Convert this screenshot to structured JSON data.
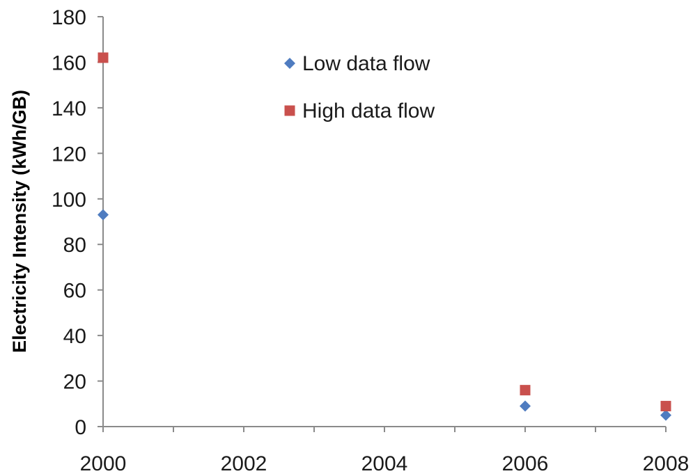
{
  "chart_data": {
    "type": "scatter",
    "title": "",
    "xlabel": "",
    "ylabel": "Electricity Intensity (kWh/GB)",
    "xlim": [
      2000,
      2008
    ],
    "ylim": [
      0,
      180
    ],
    "x_ticks": [
      2000,
      2002,
      2004,
      2006,
      2008
    ],
    "y_ticks": [
      0,
      20,
      40,
      60,
      80,
      100,
      120,
      140,
      160,
      180
    ],
    "grid": false,
    "legend_position": "top-center",
    "series": [
      {
        "name": "Low data flow",
        "marker": "diamond",
        "color": "#4F7CC0",
        "points": [
          {
            "x": 2000,
            "y": 93
          },
          {
            "x": 2006,
            "y": 9
          },
          {
            "x": 2008,
            "y": 5
          }
        ]
      },
      {
        "name": "High data flow",
        "marker": "square",
        "color": "#C9504D",
        "points": [
          {
            "x": 2000,
            "y": 162
          },
          {
            "x": 2006,
            "y": 16
          },
          {
            "x": 2008,
            "y": 9
          }
        ]
      }
    ]
  }
}
